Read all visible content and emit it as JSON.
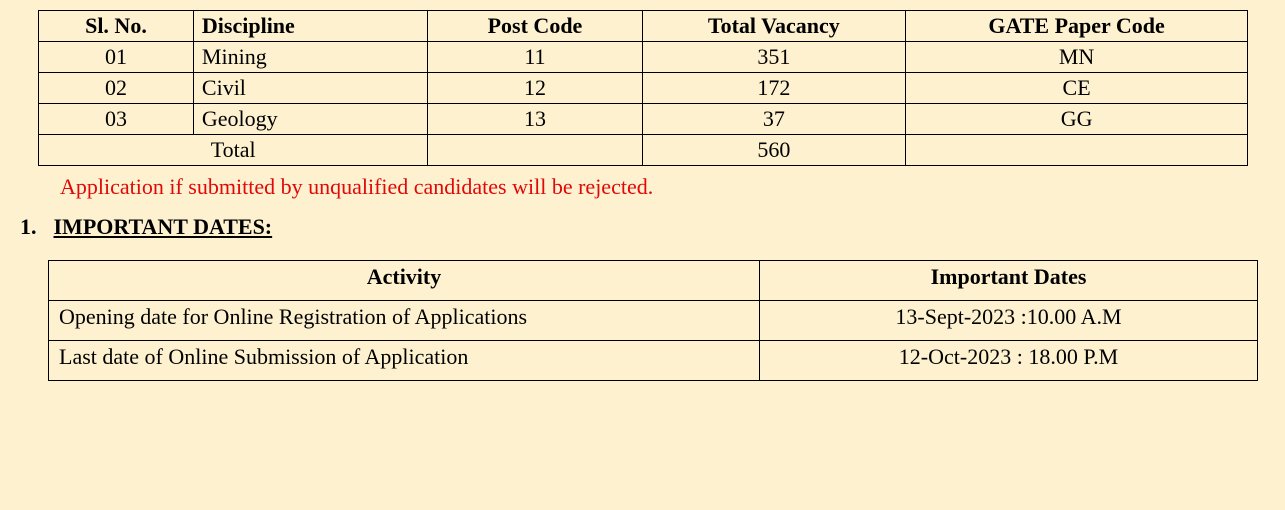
{
  "vacancy_table": {
    "headers": {
      "sl_no": "Sl. No.",
      "discipline": "Discipline",
      "post_code": "Post Code",
      "total_vacancy": "Total Vacancy",
      "gate_paper_code": "GATE Paper Code"
    },
    "rows": [
      {
        "sl_no": "01",
        "discipline": "Mining",
        "post_code": "11",
        "total_vacancy": "351",
        "gate_paper_code": "MN"
      },
      {
        "sl_no": "02",
        "discipline": "Civil",
        "post_code": "12",
        "total_vacancy": "172",
        "gate_paper_code": "CE"
      },
      {
        "sl_no": "03",
        "discipline": "Geology",
        "post_code": "13",
        "total_vacancy": "37",
        "gate_paper_code": "GG"
      }
    ],
    "total_label": "Total",
    "total_vacancy": "560"
  },
  "warning_text": "Application if submitted by unqualified candidates will be rejected.",
  "section": {
    "number": "1.",
    "title": "IMPORTANT DATES:"
  },
  "dates_table": {
    "headers": {
      "activity": "Activity",
      "dates": "Important Dates"
    },
    "rows": [
      {
        "activity": "Opening date for Online Registration of Applications",
        "date": "13-Sept-2023 :10.00 A.M"
      },
      {
        "activity": "Last date of Online Submission of Application",
        "date": "12-Oct-2023 :  18.00 P.M"
      }
    ]
  },
  "colors": {
    "page_bg": "#fdf1d0",
    "border": "#000000",
    "text": "#000000",
    "warning": "#e10808"
  }
}
